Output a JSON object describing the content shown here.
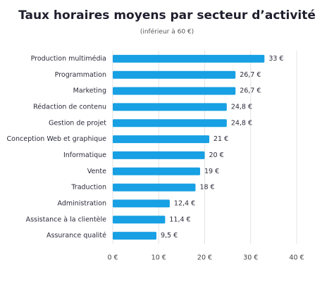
{
  "chart_data": {
    "type": "barh",
    "title": "Taux horaires moyens par secteur d’activité",
    "subtitle": "(inférieur à 60 €)",
    "categories": [
      "Production multimédia",
      "Programmation",
      "Marketing",
      "Rédaction de contenu",
      "Gestion de projet",
      "Conception Web et graphique",
      "Informatique",
      "Vente",
      "Traduction",
      "Administration",
      "Assistance à la clientèle",
      "Assurance qualité"
    ],
    "values": [
      33,
      26.7,
      26.7,
      24.8,
      24.8,
      21,
      20,
      19,
      18,
      12.4,
      11.4,
      9.5
    ],
    "value_labels": [
      "33 €",
      "26,7 €",
      "26,7 €",
      "24,8 €",
      "24,8 €",
      "21 €",
      "20 €",
      "19 €",
      "18 €",
      "12,4 €",
      "11,4 €",
      "9,5 €"
    ],
    "color": "#17a0e3",
    "xlim": [
      0,
      40
    ],
    "xticks": [
      {
        "value": 0,
        "label": "0 €"
      },
      {
        "value": 10,
        "label": "10 €"
      },
      {
        "value": 20,
        "label": "20 €"
      },
      {
        "value": 30,
        "label": "30 €"
      },
      {
        "value": 40,
        "label": "40 €"
      }
    ],
    "grid": true
  }
}
